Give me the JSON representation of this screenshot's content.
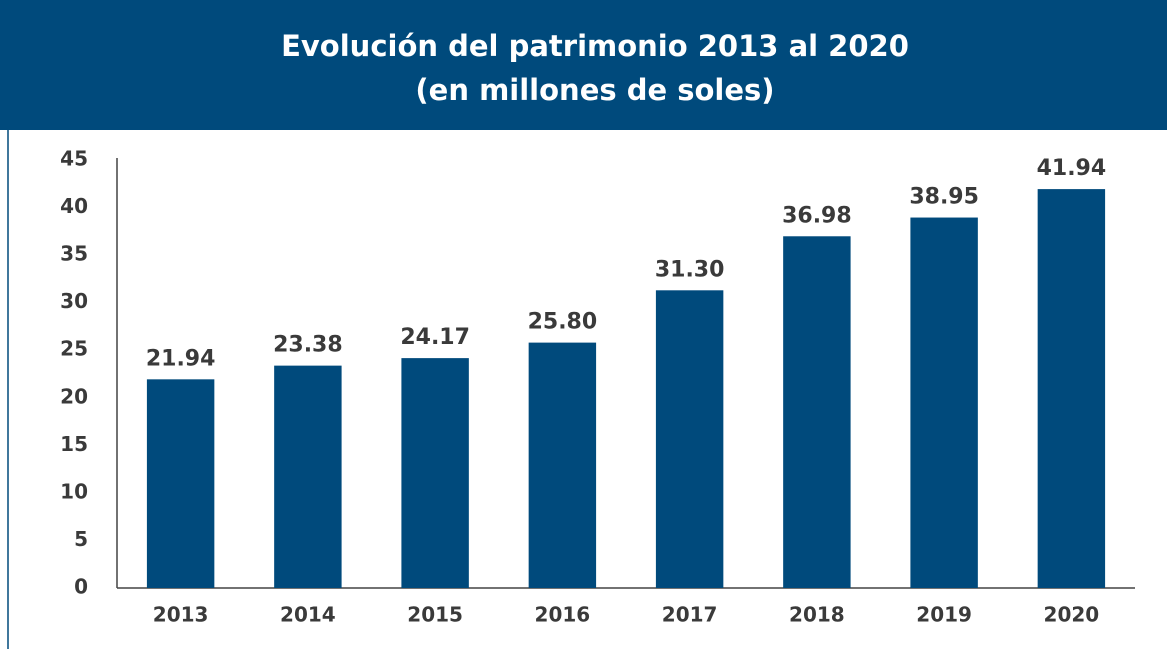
{
  "chart_data": {
    "type": "bar",
    "title": "Evolución del patrimonio 2013 al 2020",
    "subtitle": "(en millones de soles)",
    "categories": [
      "2013",
      "2014",
      "2015",
      "2016",
      "2017",
      "2018",
      "2019",
      "2020"
    ],
    "values": [
      21.94,
      23.38,
      24.17,
      25.8,
      31.3,
      36.98,
      38.95,
      41.94
    ],
    "value_labels": [
      "21.94",
      "23.38",
      "24.17",
      "25.80",
      "31.30",
      "36.98",
      "38.95",
      "41.94"
    ],
    "color": "#004a7c",
    "ylim": [
      0,
      45
    ],
    "yticks": [
      0,
      5,
      10,
      15,
      20,
      25,
      30,
      35,
      40,
      45
    ],
    "grid": false
  }
}
